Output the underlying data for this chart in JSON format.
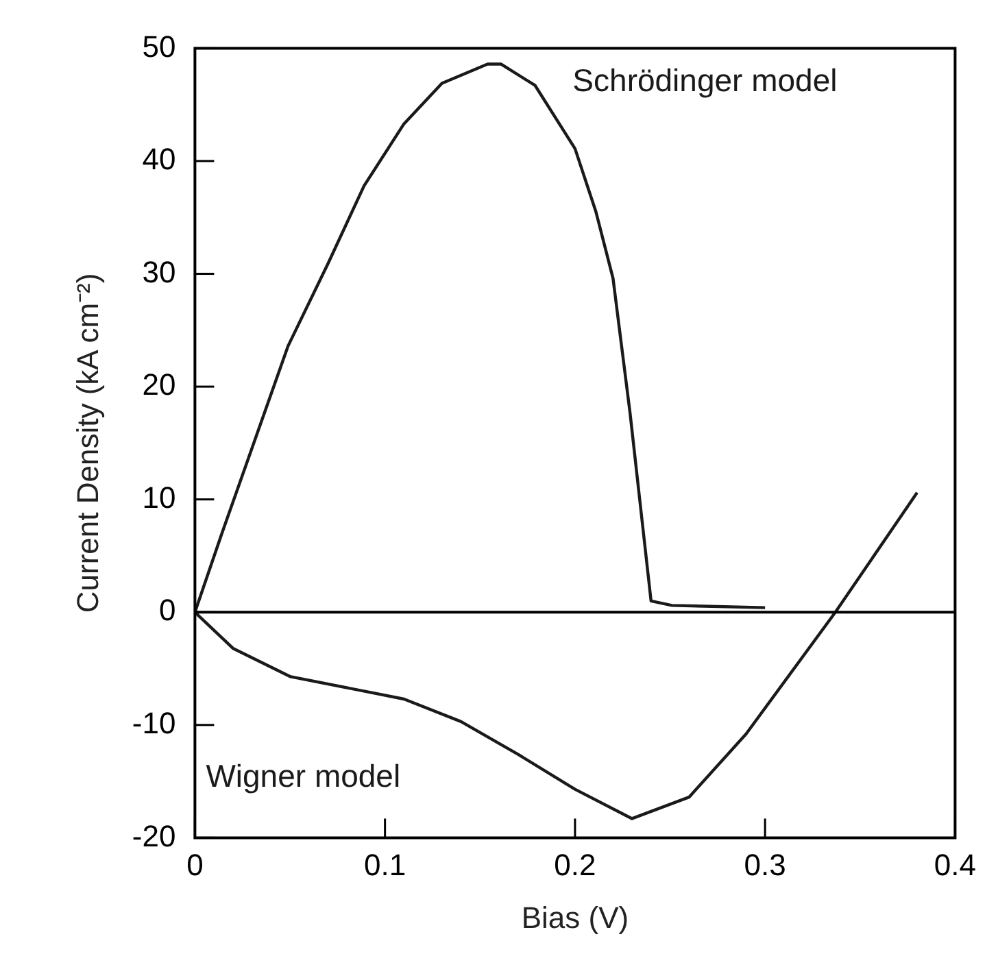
{
  "chart_data": {
    "type": "line",
    "xlabel": "Bias (V)",
    "ylabel": "Current Density (kA cm⁻²)",
    "xlim": [
      0,
      0.4
    ],
    "xticks": [
      0,
      0.1,
      0.2,
      0.3,
      0.4
    ],
    "ylim": [
      -20,
      50
    ],
    "yticks": [
      -20,
      -10,
      0,
      10,
      20,
      30,
      40,
      50
    ],
    "grid": false,
    "legend": false,
    "marker": "none",
    "line_style": "solid",
    "ref_lines": [
      {
        "axis": "y",
        "value": 0,
        "color": "#000000"
      }
    ],
    "series": [
      {
        "name": "Schrödinger model",
        "color": "#1a1a1a",
        "x": [
          0,
          0.014,
          0.049,
          0.07,
          0.089,
          0.11,
          0.13,
          0.154,
          0.161,
          0.179,
          0.2,
          0.211,
          0.22,
          0.229,
          0.24,
          0.251,
          0.3
        ],
        "values": [
          0,
          6.9,
          23.6,
          30.9,
          37.8,
          43.3,
          46.9,
          48.6,
          48.6,
          46.7,
          41.1,
          35.5,
          29.6,
          17.6,
          1.0,
          0.6,
          0.4
        ]
      },
      {
        "name": "Wigner model",
        "color": "#1a1a1a",
        "x": [
          0,
          0.02,
          0.05,
          0.11,
          0.14,
          0.17,
          0.2,
          0.23,
          0.26,
          0.29,
          0.337,
          0.38
        ],
        "values": [
          0,
          -3.2,
          -5.7,
          -7.7,
          -9.7,
          -12.6,
          -15.7,
          -18.3,
          -16.4,
          -10.8,
          0,
          10.6
        ]
      }
    ]
  }
}
